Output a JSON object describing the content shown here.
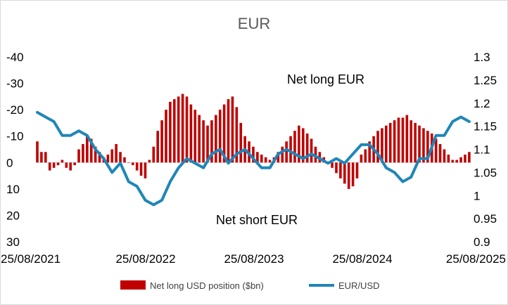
{
  "chart_data": {
    "type": "bar+line",
    "title": "EUR",
    "left_axis": {
      "reversed": true,
      "ylim": [
        -40,
        30
      ],
      "ticks": [
        -40,
        -30,
        -20,
        -10,
        0,
        10,
        20,
        30
      ],
      "tick_labels": [
        "-40",
        "-30",
        "-20",
        "-10",
        "0",
        "10",
        "20",
        "30"
      ]
    },
    "right_axis": {
      "ylim": [
        0.9,
        1.3
      ],
      "ticks": [
        1.3,
        1.25,
        1.2,
        1.15,
        1.1,
        1.05,
        1,
        0.95,
        0.9
      ],
      "tick_labels": [
        "1.3",
        "1.25",
        "1.2",
        "1.15",
        "1.1",
        "1.05",
        "1",
        "0.95",
        "0.9"
      ]
    },
    "x_axis": {
      "range": [
        "2021-08-25",
        "2025-08-25"
      ],
      "tick_labels": [
        "25/08/2021",
        "25/08/2022",
        "25/08/2023",
        "25/08/2024",
        "25/08/2025"
      ]
    },
    "annotations": {
      "upper": "Net long EUR",
      "lower": "Net short EUR"
    },
    "legend": {
      "position": "bottom",
      "bar_label": "Net long USD position ($bn)",
      "line_label": "EUR/USD"
    },
    "colors": {
      "bars": "#c00000",
      "line": "#1f86b8"
    },
    "series": [
      {
        "name": "Net long USD position ($bn)",
        "kind": "bar",
        "axis": "left",
        "x": [
          "2021-08-25",
          "2021-09-08",
          "2021-09-22",
          "2021-10-06",
          "2021-10-20",
          "2021-11-03",
          "2021-11-17",
          "2021-12-01",
          "2021-12-15",
          "2021-12-29",
          "2022-01-12",
          "2022-01-26",
          "2022-02-09",
          "2022-02-23",
          "2022-03-09",
          "2022-03-23",
          "2022-04-06",
          "2022-04-20",
          "2022-05-04",
          "2022-05-18",
          "2022-06-01",
          "2022-06-15",
          "2022-06-29",
          "2022-07-13",
          "2022-07-27",
          "2022-08-10",
          "2022-08-24",
          "2022-09-07",
          "2022-09-21",
          "2022-10-05",
          "2022-10-19",
          "2022-11-02",
          "2022-11-16",
          "2022-11-30",
          "2022-12-14",
          "2022-12-28",
          "2023-01-11",
          "2023-01-25",
          "2023-02-08",
          "2023-02-22",
          "2023-03-08",
          "2023-03-22",
          "2023-04-05",
          "2023-04-19",
          "2023-05-03",
          "2023-05-17",
          "2023-05-31",
          "2023-06-14",
          "2023-06-28",
          "2023-07-12",
          "2023-07-26",
          "2023-08-09",
          "2023-08-23",
          "2023-09-06",
          "2023-09-20",
          "2023-10-04",
          "2023-10-18",
          "2023-11-01",
          "2023-11-15",
          "2023-11-29",
          "2023-12-13",
          "2023-12-27",
          "2024-01-10",
          "2024-01-24",
          "2024-02-07",
          "2024-02-21",
          "2024-03-06",
          "2024-03-20",
          "2024-04-03",
          "2024-04-17",
          "2024-05-01",
          "2024-05-15",
          "2024-05-29",
          "2024-06-12",
          "2024-06-26",
          "2024-07-10",
          "2024-07-24",
          "2024-08-07",
          "2024-08-21",
          "2024-09-04",
          "2024-09-18",
          "2024-10-02",
          "2024-10-16",
          "2024-10-30",
          "2024-11-13",
          "2024-11-27",
          "2024-12-11",
          "2024-12-25",
          "2025-01-08",
          "2025-01-22",
          "2025-02-05",
          "2025-02-19",
          "2025-03-05",
          "2025-03-19",
          "2025-04-02",
          "2025-04-16",
          "2025-04-30",
          "2025-05-14",
          "2025-05-28",
          "2025-06-11",
          "2025-06-25",
          "2025-07-09",
          "2025-07-23",
          "2025-08-06",
          "2025-08-20"
        ],
        "values": [
          -8,
          -4,
          -4,
          3,
          2,
          1,
          -1,
          2,
          3,
          1,
          -5,
          -7,
          -10,
          -9,
          -6,
          -4,
          -2,
          -3,
          -5,
          -7,
          -4,
          -2,
          0,
          1,
          3,
          5,
          6,
          -1,
          -6,
          -12,
          -16,
          -20,
          -23,
          -24,
          -25,
          -26,
          -25,
          -22,
          -20,
          -18,
          -16,
          -14,
          -16,
          -18,
          -20,
          -22,
          -24,
          -25,
          -21,
          -15,
          -10,
          -8,
          -6,
          -4,
          -3,
          -2,
          -1,
          -2,
          -4,
          -6,
          -8,
          -10,
          -12,
          -14,
          -13,
          -11,
          -9,
          -6,
          -4,
          -2,
          0,
          2,
          4,
          6,
          8,
          10,
          9,
          6,
          -3,
          -5,
          -8,
          -10,
          -12,
          -13,
          -14,
          -15,
          -16,
          -17,
          -17,
          -18,
          -16,
          -15,
          -14,
          -13,
          -12,
          -11,
          -9,
          -7,
          -5,
          -3,
          -1,
          -1,
          -2,
          -3,
          -4
        ],
        "values_note": "weekly series; values are read by eye from the chart"
      },
      {
        "name": "EUR/USD",
        "kind": "line",
        "axis": "right",
        "x": [
          "2021-08-25",
          "2021-09-22",
          "2021-10-20",
          "2021-11-17",
          "2021-12-15",
          "2022-01-12",
          "2022-02-09",
          "2022-03-09",
          "2022-04-06",
          "2022-05-04",
          "2022-06-01",
          "2022-06-29",
          "2022-07-27",
          "2022-08-24",
          "2022-09-21",
          "2022-10-19",
          "2022-11-16",
          "2022-12-14",
          "2023-01-11",
          "2023-02-08",
          "2023-03-08",
          "2023-04-05",
          "2023-05-03",
          "2023-05-31",
          "2023-06-28",
          "2023-07-26",
          "2023-08-23",
          "2023-09-20",
          "2023-10-18",
          "2023-11-15",
          "2023-12-13",
          "2024-01-10",
          "2024-02-07",
          "2024-03-06",
          "2024-04-03",
          "2024-05-01",
          "2024-05-29",
          "2024-06-26",
          "2024-07-24",
          "2024-08-21",
          "2024-09-18",
          "2024-10-16",
          "2024-11-13",
          "2024-12-11",
          "2025-01-08",
          "2025-02-05",
          "2025-03-05",
          "2025-04-02",
          "2025-04-30",
          "2025-05-28",
          "2025-06-25",
          "2025-07-23",
          "2025-08-20"
        ],
        "values": [
          1.18,
          1.17,
          1.16,
          1.13,
          1.13,
          1.14,
          1.13,
          1.1,
          1.08,
          1.05,
          1.07,
          1.03,
          1.02,
          0.99,
          0.98,
          0.99,
          1.03,
          1.06,
          1.08,
          1.07,
          1.06,
          1.09,
          1.1,
          1.07,
          1.09,
          1.1,
          1.08,
          1.06,
          1.06,
          1.09,
          1.1,
          1.09,
          1.08,
          1.09,
          1.08,
          1.07,
          1.08,
          1.07,
          1.09,
          1.11,
          1.11,
          1.09,
          1.06,
          1.05,
          1.03,
          1.04,
          1.08,
          1.08,
          1.13,
          1.13,
          1.16,
          1.17,
          1.16
        ],
        "values_note": "EUR/USD; values are read by eye from the chart"
      }
    ]
  }
}
